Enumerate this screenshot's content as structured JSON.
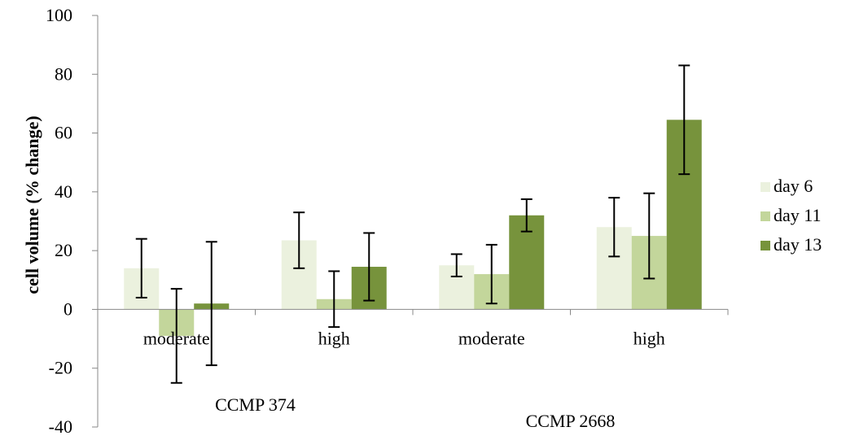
{
  "chart_data": {
    "type": "bar",
    "ylabel": "cell volume (% change)",
    "xlabel": "",
    "title": "",
    "ylim": [
      -40,
      100
    ],
    "yticks": [
      -40,
      -20,
      0,
      20,
      40,
      60,
      80,
      100
    ],
    "grid": false,
    "legend_position": "right",
    "categories": [
      "moderate",
      "high",
      "moderate",
      "high"
    ],
    "groups": [
      {
        "label": "CCMP 374",
        "categories": [
          0,
          1
        ]
      },
      {
        "label": "CCMP 2668",
        "categories": [
          2,
          3
        ]
      }
    ],
    "series": [
      {
        "name": "day 6",
        "color": "#ebf1de",
        "values": [
          14,
          23.5,
          15,
          28
        ],
        "errors": [
          10,
          9.5,
          3.8,
          10
        ]
      },
      {
        "name": "day 11",
        "color": "#c3d69b",
        "values": [
          -9,
          3.5,
          12,
          25
        ],
        "errors": [
          16,
          9.5,
          10,
          14.5
        ]
      },
      {
        "name": "day 13",
        "color": "#77933c",
        "values": [
          2,
          14.5,
          32,
          64.5
        ],
        "errors": [
          21,
          11.5,
          5.5,
          18.5
        ]
      }
    ]
  }
}
